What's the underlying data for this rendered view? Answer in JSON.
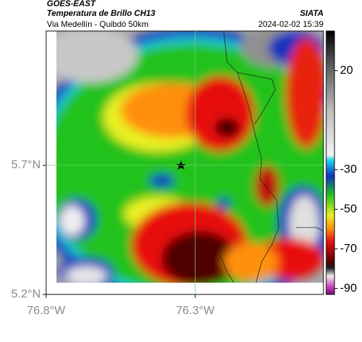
{
  "header": {
    "source": "GOES-EAST",
    "title": "Temperatura de Brillo CH13",
    "subtitle": "Via Medellín - Quibdó 50km",
    "agency": "SIATA",
    "timestamp": "2024-02-02 15:39"
  },
  "map": {
    "xlim": [
      -76.8,
      -75.87
    ],
    "ylim": [
      5.2,
      6.22
    ],
    "xticks": [
      {
        "value": -76.8,
        "label": "76.8°W"
      },
      {
        "value": -76.3,
        "label": "76.3°W"
      }
    ],
    "yticks": [
      {
        "value": 5.7,
        "label": "5.7°N"
      },
      {
        "value": 5.2,
        "label": "5.2°N"
      }
    ]
  },
  "colorbar": {
    "lim": [
      -93,
      40
    ],
    "ticks": [
      20,
      -30,
      -50,
      -70,
      -90
    ]
  }
}
